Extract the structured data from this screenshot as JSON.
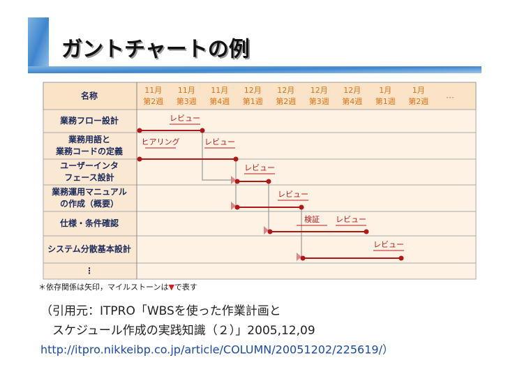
{
  "title": "ガントチャートの例",
  "table": {
    "name_header": "名称",
    "columns": [
      {
        "month": "11月",
        "week": "第2週"
      },
      {
        "month": "11月",
        "week": "第3週"
      },
      {
        "month": "11月",
        "week": "第4週"
      },
      {
        "month": "12月",
        "week": "第1週"
      },
      {
        "month": "12月",
        "week": "第2週"
      },
      {
        "month": "12月",
        "week": "第3週"
      },
      {
        "month": "12月",
        "week": "第4週"
      },
      {
        "month": "1月",
        "week": "第1週"
      },
      {
        "month": "1月",
        "week": "第2週"
      }
    ],
    "more": "…",
    "rows": [
      {
        "name": [
          "業務フロー設計"
        ],
        "annotations": [
          "レビュー"
        ]
      },
      {
        "name": [
          "業務用語と",
          "業務コードの定義"
        ],
        "annotations": [
          "ヒアリング",
          "レビュー"
        ]
      },
      {
        "name": [
          "ユーザーインタ",
          "フェース設計"
        ],
        "annotations": [
          "レビュー"
        ]
      },
      {
        "name": [
          "業務運用マニュアル",
          "の作成（概要）"
        ],
        "annotations": [
          "レビュー"
        ]
      },
      {
        "name": [
          "仕様・条件確認"
        ],
        "annotations": [
          "検証",
          "レビュー"
        ]
      },
      {
        "name": [
          "システム分散基本設計"
        ],
        "annotations": [
          "レビュー"
        ]
      },
      {
        "name": [
          "⋮"
        ],
        "annotations": []
      }
    ]
  },
  "footnote": {
    "before": "＊依存関係は矢印，マイルストーンは",
    "symbol": "▼",
    "after": "で表す"
  },
  "citation": [
    "（引用元：ITPRO「WBSを使った作業計画と",
    "　スケジュール作成の実践知識（２）」2005,12,09",
    "http://itpro.nikkeibp.co.jp/article/COLUMN/20051202/225619/）"
  ]
}
